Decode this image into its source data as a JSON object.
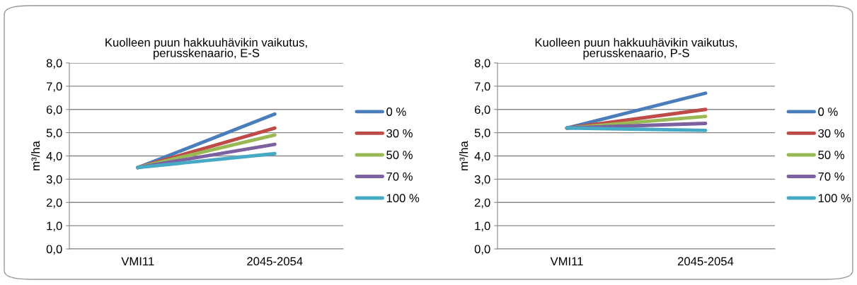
{
  "chart_data": [
    {
      "type": "line",
      "title": "Kuolleen puun hakkuuhävikin vaikutus,\nperusskenaario, E-S",
      "ylabel": "m³/ha",
      "categories": [
        "VMI11",
        "2045-2054"
      ],
      "series": [
        {
          "name": "0 %",
          "color": "#4a7ebb",
          "values": [
            3.5,
            5.8
          ]
        },
        {
          "name": "30 %",
          "color": "#be4b48",
          "values": [
            3.5,
            5.2
          ]
        },
        {
          "name": "50 %",
          "color": "#98b954",
          "values": [
            3.5,
            4.9
          ]
        },
        {
          "name": "70 %",
          "color": "#7d60a0",
          "values": [
            3.5,
            4.5
          ]
        },
        {
          "name": "100 %",
          "color": "#46aac5",
          "values": [
            3.5,
            4.1
          ]
        }
      ],
      "ylim": [
        0,
        8
      ],
      "yticks": [
        {
          "value": 0,
          "label": "0,0"
        },
        {
          "value": 1,
          "label": "1,0"
        },
        {
          "value": 2,
          "label": "2,0"
        },
        {
          "value": 3,
          "label": "3,0"
        },
        {
          "value": 4,
          "label": "4,0"
        },
        {
          "value": 5,
          "label": "5,0"
        },
        {
          "value": 6,
          "label": "6,0"
        },
        {
          "value": 7,
          "label": "7,0"
        },
        {
          "value": 8,
          "label": "8,0"
        }
      ],
      "grid": "y",
      "legend": "right",
      "marker": "none",
      "line_style": "solid"
    },
    {
      "type": "line",
      "title": "Kuolleen puun hakkuuhävikin vaikutus,\nperusskenaario, P-S",
      "ylabel": "m³/ha",
      "categories": [
        "VMI11",
        "2045-2054"
      ],
      "series": [
        {
          "name": "0 %",
          "color": "#4a7ebb",
          "values": [
            5.2,
            6.7
          ]
        },
        {
          "name": "30 %",
          "color": "#be4b48",
          "values": [
            5.2,
            6.0
          ]
        },
        {
          "name": "50 %",
          "color": "#98b954",
          "values": [
            5.2,
            5.7
          ]
        },
        {
          "name": "70 %",
          "color": "#7d60a0",
          "values": [
            5.2,
            5.4
          ]
        },
        {
          "name": "100 %",
          "color": "#46aac5",
          "values": [
            5.2,
            5.1
          ]
        }
      ],
      "ylim": [
        0,
        8
      ],
      "yticks": [
        {
          "value": 0,
          "label": "0,0"
        },
        {
          "value": 1,
          "label": "1,0"
        },
        {
          "value": 2,
          "label": "2,0"
        },
        {
          "value": 3,
          "label": "3,0"
        },
        {
          "value": 4,
          "label": "4,0"
        },
        {
          "value": 5,
          "label": "5,0"
        },
        {
          "value": 6,
          "label": "6,0"
        },
        {
          "value": 7,
          "label": "7,0"
        },
        {
          "value": 8,
          "label": "8,0"
        }
      ],
      "grid": "y",
      "legend": "right",
      "marker": "none",
      "line_style": "solid"
    }
  ]
}
